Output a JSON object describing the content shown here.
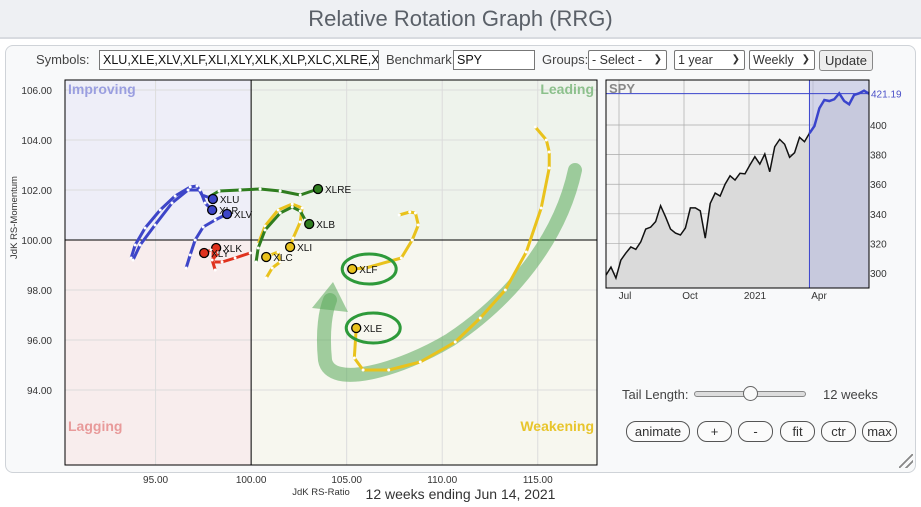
{
  "header": {
    "title": "Relative Rotation Graph (RRG)"
  },
  "controls": {
    "symbols_label": "Symbols:",
    "symbols_value": "XLU,XLE,XLV,XLF,XLI,XLY,XLK,XLP,XLC,XLRE,XL",
    "benchmark_label": "Benchmark:",
    "benchmark_value": "SPY",
    "groups_label": "Groups:",
    "groups_value": "- Select -",
    "period_value": "1 year",
    "interval_value": "Weekly",
    "update_label": "Update"
  },
  "rrg": {
    "quadrants": {
      "improving": "Improving",
      "leading": "Leading",
      "lagging": "Lagging",
      "weakening": "Weakening"
    },
    "xlabel": "JdK RS-Ratio",
    "ylabel": "JdK RS-Momentum",
    "xticks": [
      "95.00",
      "100.00",
      "105.00",
      "110.00",
      "115.00"
    ],
    "yticks": [
      "106.00",
      "104.00",
      "102.00",
      "100.00",
      "98.00",
      "96.00",
      "94.00"
    ],
    "xlim": [
      90.26,
      118.1
    ],
    "ylim": [
      91.0,
      106.4
    ],
    "colors": {
      "blue": "#3d45c8",
      "green": "#2f7d1f",
      "yellow": "#e9c21c",
      "red": "#e0321e"
    },
    "series": [
      {
        "name": "XLE",
        "color": "yellow",
        "tail": [
          [
            114.87,
            104.52
          ],
          [
            115.45,
            104.0
          ],
          [
            115.6,
            103.52
          ],
          [
            115.6,
            102.88
          ],
          [
            115.18,
            101.28
          ],
          [
            114.4,
            99.52
          ],
          [
            113.3,
            98.0
          ],
          [
            111.99,
            96.88
          ],
          [
            110.68,
            95.92
          ],
          [
            108.85,
            95.12
          ],
          [
            107.2,
            94.8
          ],
          [
            105.86,
            94.8
          ],
          [
            105.4,
            95.28
          ],
          [
            105.5,
            96.48
          ]
        ]
      },
      {
        "name": "XLF",
        "color": "yellow",
        "tail": [
          [
            107.75,
            101.0
          ],
          [
            108.3,
            101.12
          ],
          [
            108.6,
            101.08
          ],
          [
            108.75,
            100.6
          ],
          [
            108.43,
            100.0
          ],
          [
            107.86,
            99.28
          ],
          [
            106.0,
            98.88
          ],
          [
            105.29,
            98.84
          ]
        ]
      },
      {
        "name": "XLI",
        "color": "yellow",
        "tail": [
          [
            100.37,
            99.84
          ],
          [
            100.73,
            100.56
          ],
          [
            101.41,
            101.2
          ],
          [
            102.15,
            101.44
          ],
          [
            102.67,
            101.28
          ],
          [
            102.57,
            100.72
          ],
          [
            102.2,
            100.08
          ],
          [
            102.04,
            99.72
          ]
        ]
      },
      {
        "name": "XLC",
        "color": "yellow",
        "tail": [
          [
            100.79,
            98.48
          ],
          [
            101.1,
            98.88
          ],
          [
            101.52,
            99.12
          ],
          [
            101.41,
            99.52
          ],
          [
            101.0,
            99.4
          ],
          [
            100.79,
            99.32
          ]
        ]
      },
      {
        "name": "XLRE",
        "color": "green",
        "tail": [
          [
            97.7,
            101.68
          ],
          [
            98.32,
            101.96
          ],
          [
            99.42,
            102.0
          ],
          [
            100.47,
            102.04
          ],
          [
            101.52,
            101.96
          ],
          [
            102.57,
            101.8
          ],
          [
            103.5,
            102.04
          ]
        ]
      },
      {
        "name": "XLB",
        "color": "green",
        "tail": [
          [
            100.26,
            99.12
          ],
          [
            100.37,
            99.68
          ],
          [
            100.73,
            100.4
          ],
          [
            101.52,
            101.08
          ],
          [
            102.15,
            101.32
          ],
          [
            102.57,
            101.16
          ],
          [
            102.83,
            100.8
          ],
          [
            103.04,
            100.64
          ]
        ]
      },
      {
        "name": "XLU",
        "color": "blue",
        "tail": [
          [
            93.72,
            99.28
          ],
          [
            93.93,
            99.8
          ],
          [
            94.45,
            100.48
          ],
          [
            95.24,
            101.2
          ],
          [
            96.02,
            101.76
          ],
          [
            96.81,
            102.12
          ],
          [
            97.17,
            102.16
          ],
          [
            97.43,
            101.8
          ],
          [
            98.0,
            101.64
          ]
        ]
      },
      {
        "name": "XLP",
        "color": "blue",
        "tail": [
          [
            93.82,
            99.2
          ],
          [
            94.19,
            99.8
          ],
          [
            94.97,
            100.6
          ],
          [
            95.86,
            101.48
          ],
          [
            96.7,
            102.0
          ],
          [
            97.33,
            102.0
          ],
          [
            97.59,
            101.48
          ],
          [
            97.96,
            101.2
          ]
        ]
      },
      {
        "name": "XLV",
        "color": "blue",
        "tail": [
          [
            96.6,
            98.88
          ],
          [
            96.81,
            99.4
          ],
          [
            97.07,
            100.0
          ],
          [
            97.49,
            100.52
          ],
          [
            98.12,
            100.8
          ],
          [
            98.74,
            101.04
          ]
        ]
      },
      {
        "name": "XLK",
        "color": "red",
        "tail": [
          [
            99.95,
            99.48
          ],
          [
            99.16,
            99.28
          ],
          [
            98.48,
            99.12
          ],
          [
            98.01,
            99.12
          ],
          [
            98.01,
            99.6
          ],
          [
            98.17,
            99.68
          ]
        ]
      },
      {
        "name": "XLY",
        "color": "red",
        "tail": [
          [
            98.12,
            98.8
          ],
          [
            97.96,
            99.2
          ],
          [
            98.3,
            99.5
          ],
          [
            97.9,
            99.6
          ],
          [
            97.54,
            99.48
          ]
        ]
      }
    ]
  },
  "spy": {
    "title": "SPY",
    "last_label": "421.19",
    "last_value": 421.19,
    "yticks": [
      300,
      320,
      340,
      360,
      380,
      400
    ],
    "ylim": [
      289.9,
      430.4
    ],
    "xticks": [
      "Jul",
      "Oct",
      "2021",
      "Apr"
    ],
    "highlight_weeks": 13,
    "values": [
      298.6,
      304,
      296.6,
      308.8,
      313.5,
      317.6,
      316,
      321,
      329.7,
      331,
      334.7,
      345.5,
      338,
      329.7,
      327,
      325.7,
      330.4,
      344,
      344,
      342,
      323.6,
      347,
      354,
      352,
      360,
      365.7,
      362.8,
      367.4,
      367,
      373,
      378.6,
      373.6,
      380.4,
      368.4,
      385.3,
      390.3,
      387,
      378.2,
      381.3,
      391.7,
      388.7,
      394.4,
      399.3,
      411.3,
      416.9,
      416.2,
      417.4,
      421.4,
      416.2,
      414,
      420.3,
      421.4,
      423.2,
      421.19
    ]
  },
  "tail": {
    "label": "Tail Length:",
    "value_label": "12 weeks",
    "fraction": 0.5
  },
  "buttons": {
    "animate": "animate",
    "plus": "+",
    "minus": "-",
    "fit": "fit",
    "ctr": "ctr",
    "max": "max"
  },
  "footer": {
    "text": "12 weeks ending Jun 14, 2021"
  }
}
